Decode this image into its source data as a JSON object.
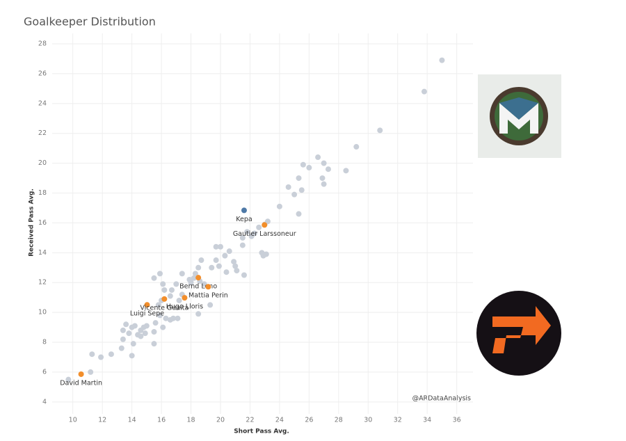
{
  "chart_data": {
    "type": "scatter",
    "title": "Goalkeeper Distribution",
    "x_label": "Short Pass Avg.",
    "y_label": "Received Pass Avg.",
    "xlim": [
      8.6,
      37.1
    ],
    "ylim": [
      3.2,
      28.7
    ],
    "xticks": [
      10,
      12,
      14,
      16,
      18,
      20,
      22,
      24,
      26,
      28,
      30,
      32,
      34,
      36
    ],
    "yticks": [
      4,
      6,
      8,
      10,
      12,
      14,
      16,
      18,
      20,
      22,
      24,
      26,
      28
    ],
    "grid": true,
    "points": {
      "color": "#c9cfd8",
      "x": [
        13.4,
        13.6,
        13.8,
        14.0,
        14.2,
        14.4,
        14.6,
        14.8,
        15.0,
        14.6,
        14.9,
        15.5,
        15.6,
        15.5,
        15.9,
        16.1,
        16.3,
        16.6,
        16.8,
        17.1,
        15.8,
        16.0,
        16.2,
        16.1,
        15.5,
        15.9,
        16.6,
        16.7,
        17.0,
        17.2,
        17.4,
        17.4,
        17.9,
        18.0,
        18.2,
        18.3,
        18.5,
        18.6,
        18.7,
        18.5,
        18.9,
        19.3,
        19.4,
        19.7,
        19.7,
        19.9,
        20.0,
        20.3,
        20.4,
        20.6,
        20.9,
        21.0,
        21.1,
        21.5,
        21.5,
        21.6,
        21.8,
        22.1,
        22.3,
        22.6,
        23.0,
        23.2,
        22.8,
        22.9,
        23.1,
        24.0,
        24.6,
        25.0,
        25.3,
        25.3,
        25.5,
        25.6,
        26.0,
        26.6,
        26.9,
        27.0,
        27.0,
        27.3,
        28.5,
        29.2,
        30.8,
        33.8,
        35.0,
        9.7,
        11.2,
        11.3,
        11.9,
        12.6,
        13.3,
        14.0,
        14.1,
        13.4
      ],
      "y": [
        8.8,
        9.2,
        8.6,
        9.0,
        9.1,
        8.5,
        8.8,
        9.0,
        9.1,
        8.4,
        8.6,
        8.7,
        9.3,
        7.9,
        9.8,
        9.0,
        9.6,
        9.5,
        9.6,
        9.6,
        10.5,
        10.8,
        11.5,
        11.9,
        12.3,
        12.6,
        11.1,
        11.5,
        11.9,
        10.8,
        11.2,
        12.6,
        12.2,
        12.0,
        12.3,
        12.6,
        13.0,
        12.1,
        13.5,
        9.9,
        11.9,
        10.5,
        13.0,
        13.5,
        14.4,
        13.1,
        14.4,
        13.8,
        12.7,
        14.1,
        13.4,
        13.1,
        12.8,
        14.5,
        15.0,
        12.5,
        15.4,
        15.1,
        15.3,
        15.7,
        15.9,
        16.1,
        14.0,
        13.8,
        13.9,
        17.1,
        18.4,
        17.9,
        19.0,
        16.6,
        18.2,
        19.9,
        19.7,
        20.4,
        19.0,
        18.6,
        20.0,
        19.6,
        19.5,
        21.1,
        22.2,
        24.8,
        26.9,
        5.5,
        6.0,
        7.2,
        7.0,
        7.2,
        7.6,
        7.1,
        7.9,
        8.2
      ]
    },
    "highlights": [
      {
        "label": "David Martin",
        "x": 10.56,
        "y": 5.86,
        "color": "#f28e2b"
      },
      {
        "label": "Luigi Sepe",
        "x": 15.03,
        "y": 10.51,
        "color": "#f28e2b"
      },
      {
        "label": "Vicente Guaita",
        "x": 16.2,
        "y": 10.9,
        "color": "#f28e2b"
      },
      {
        "label": "Hugo Lloris",
        "x": 17.57,
        "y": 10.98,
        "color": "#f28e2b"
      },
      {
        "label": "Bernd Leno",
        "x": 18.5,
        "y": 12.33,
        "color": "#f28e2b"
      },
      {
        "label": "Mattia Perin",
        "x": 19.17,
        "y": 11.72,
        "color": "#f28e2b"
      },
      {
        "label": "Gautier Larssoneur",
        "x": 22.98,
        "y": 15.86,
        "color": "#f28e2b"
      },
      {
        "label": "Kepa",
        "x": 21.6,
        "y": 16.84,
        "color": "#4e79a7"
      }
    ],
    "watermark": "@ARDataAnalysis"
  }
}
